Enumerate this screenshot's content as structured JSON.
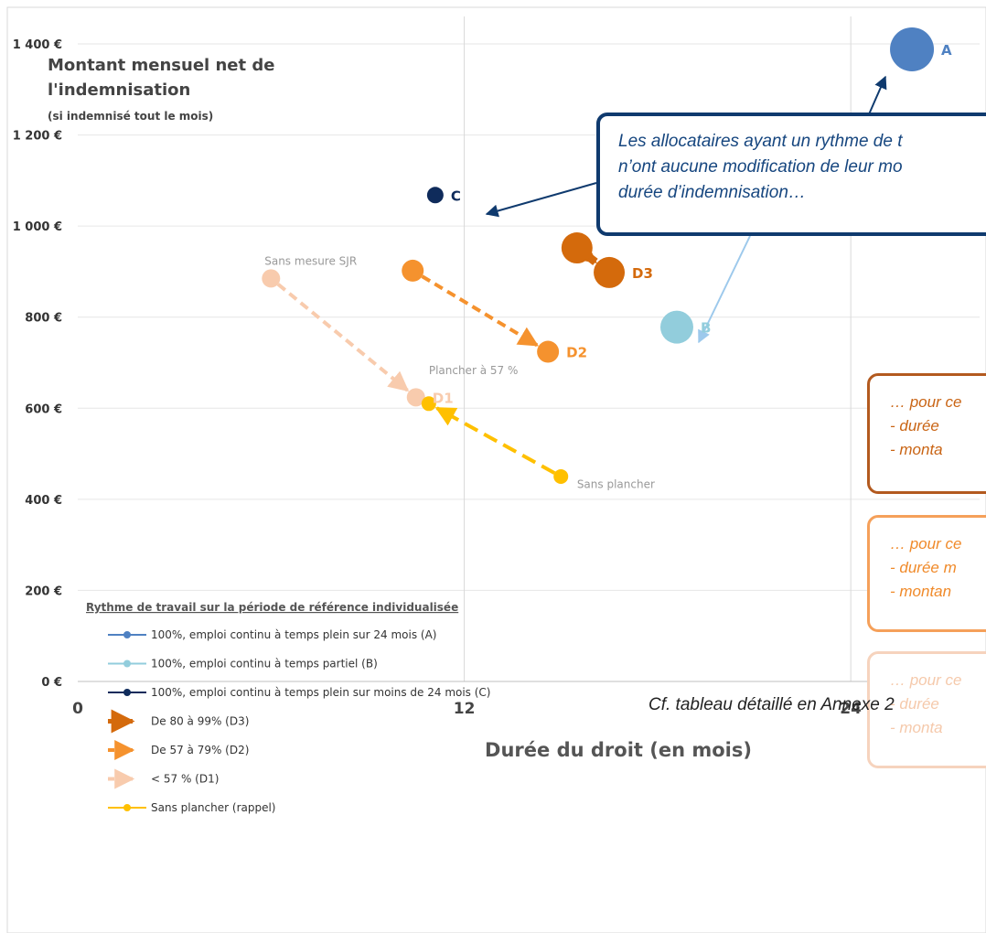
{
  "chart_data": {
    "type": "scatter",
    "ylabel_line1": "Montant mensuel net de",
    "ylabel_line2": "l'indemnisation",
    "ylabel_sub": "(si indemnisé tout le mois)",
    "xlabel": "Durée du droit (en mois)",
    "xlim": [
      0,
      28
    ],
    "ylim": [
      0,
      1400
    ],
    "x_ticks": [
      {
        "value": 0,
        "label": "0"
      },
      {
        "value": 12,
        "label": "12"
      },
      {
        "value": 24,
        "label": "24"
      }
    ],
    "y_ticks": [
      {
        "value": 0,
        "label": "0 €"
      },
      {
        "value": 200,
        "label": "200 €"
      },
      {
        "value": 400,
        "label": "400 €"
      },
      {
        "value": 600,
        "label": "600 €"
      },
      {
        "value": 800,
        "label": "800 €"
      },
      {
        "value": 1000,
        "label": "1 000 €"
      },
      {
        "value": 1200,
        "label": "1 200 €"
      },
      {
        "value": 1400,
        "label": "1 400 €"
      }
    ],
    "grid": "vertical",
    "points": [
      {
        "id": "A",
        "label": "A",
        "x": 25.9,
        "y": 1388,
        "r": 24,
        "color": "#4f81c2"
      },
      {
        "id": "B",
        "label": "B",
        "x": 18.6,
        "y": 778,
        "r": 18,
        "color": "#92cddc"
      },
      {
        "id": "C",
        "label": "C",
        "x": 11.1,
        "y": 1068,
        "r": 9,
        "color": "#0f2b5b"
      }
    ],
    "arrows": [
      {
        "id": "D3",
        "label": "D3",
        "from": {
          "x": 15.5,
          "y": 952
        },
        "to": {
          "x": 16.5,
          "y": 898
        },
        "color": "#d46a0c",
        "r": 17,
        "dash": false
      },
      {
        "id": "D2",
        "label": "D2",
        "from": {
          "x": 10.4,
          "y": 902
        },
        "to": {
          "x": 14.6,
          "y": 724
        },
        "color": "#f5922e",
        "r": 12,
        "dash": true
      },
      {
        "id": "D1",
        "label": "D1",
        "from": {
          "x": 6.0,
          "y": 885
        },
        "to": {
          "x": 10.5,
          "y": 624
        },
        "color": "#f8cbad",
        "r": 10,
        "dash": true
      },
      {
        "id": "SP",
        "label": "",
        "from": {
          "x": 15.0,
          "y": 450
        },
        "to": {
          "x": 10.9,
          "y": 610
        },
        "color": "#ffc000",
        "r": 8,
        "dash": true
      }
    ],
    "annotations": [
      {
        "text": "Sans mesure SJR",
        "x": 5.8,
        "y": 915,
        "color": "#999999"
      },
      {
        "text": "Plancher à 57 %",
        "x": 10.9,
        "y": 675,
        "color": "#999999"
      },
      {
        "text": "Sans plancher",
        "x": 15.5,
        "y": 425,
        "color": "#999999"
      }
    ],
    "legend": {
      "title": "Rythme de travail sur la période de référence individualisée",
      "position": "bottom-left",
      "entries": [
        {
          "label": "100%, emploi continu à temps plein sur 24 mois (A)",
          "color": "#4f81c2",
          "style": "dot"
        },
        {
          "label": "100%, emploi continu à temps partiel (B)",
          "color": "#92cddc",
          "style": "dot"
        },
        {
          "label": "100%, emploi continu à temps plein sur moins de 24 mois (C)",
          "color": "#0f2b5b",
          "style": "dot"
        },
        {
          "label": "De 80 à 99% (D3)",
          "color": "#d46a0c",
          "style": "arrow-solid"
        },
        {
          "label": "De 57 à 79% (D2)",
          "color": "#f5922e",
          "style": "arrow-dash"
        },
        {
          "label": "< 57 % (D1)",
          "color": "#f8cbad",
          "style": "arrow-dash"
        },
        {
          "label": "Sans plancher (rappel)",
          "color": "#ffc000",
          "style": "dot"
        }
      ]
    }
  },
  "callouts": {
    "main": [
      "Les allocataires ayant un rythme de t",
      "n’ont aucune modification de leur mo",
      "durée d’indemnisation…"
    ],
    "box1": [
      "… pour ce",
      "-   durée",
      "-   monta"
    ],
    "box2": [
      "… pour ce",
      "- durée m",
      "- montan"
    ],
    "box3": [
      "… pour ce",
      "-   durée",
      "-   monta"
    ]
  },
  "footnote": "Cf. tableau détaillé en Annexe 2"
}
